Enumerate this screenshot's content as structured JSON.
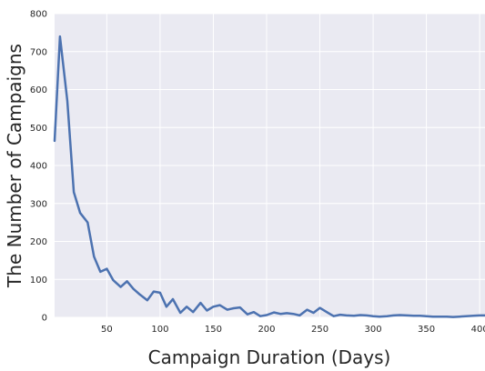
{
  "chart_data": {
    "type": "line",
    "title": "",
    "xlabel": "Campaign Duration (Days)",
    "ylabel": "The Number of Campaigns",
    "xlim": [
      1,
      405
    ],
    "ylim": [
      0,
      800
    ],
    "x_ticks": [
      50,
      100,
      150,
      200,
      250,
      300,
      350,
      400
    ],
    "y_ticks": [
      0,
      100,
      200,
      300,
      400,
      500,
      600,
      700,
      800
    ],
    "grid": true,
    "legend": "none",
    "colors": {
      "background": "#EAEAF2",
      "grid": "#FFFFFF",
      "line": "#4C72B0",
      "text": "#262626"
    },
    "series": [
      {
        "x": [
          1,
          6,
          13,
          19,
          25,
          32,
          38,
          44,
          50,
          56,
          63,
          69,
          75,
          81,
          88,
          94,
          100,
          106,
          112,
          119,
          125,
          131,
          138,
          144,
          150,
          156,
          163,
          169,
          175,
          182,
          188,
          194,
          200,
          207,
          213,
          219,
          225,
          231,
          238,
          244,
          250,
          257,
          263,
          269,
          275,
          282,
          288,
          294,
          300,
          306,
          313,
          319,
          325,
          332,
          338,
          344,
          350,
          356,
          362,
          369,
          375,
          381,
          387,
          394,
          400,
          405
        ],
        "values": [
          465,
          740,
          570,
          330,
          275,
          250,
          160,
          120,
          128,
          98,
          80,
          95,
          75,
          60,
          45,
          68,
          65,
          28,
          48,
          12,
          28,
          14,
          38,
          18,
          28,
          32,
          20,
          24,
          26,
          8,
          14,
          3,
          6,
          13,
          9,
          11,
          9,
          5,
          20,
          12,
          25,
          13,
          3,
          7,
          5,
          4,
          6,
          5,
          3,
          2,
          3,
          5,
          6,
          5,
          4,
          4,
          3,
          2,
          2,
          2,
          1,
          2,
          3,
          4,
          5,
          5
        ]
      }
    ]
  }
}
